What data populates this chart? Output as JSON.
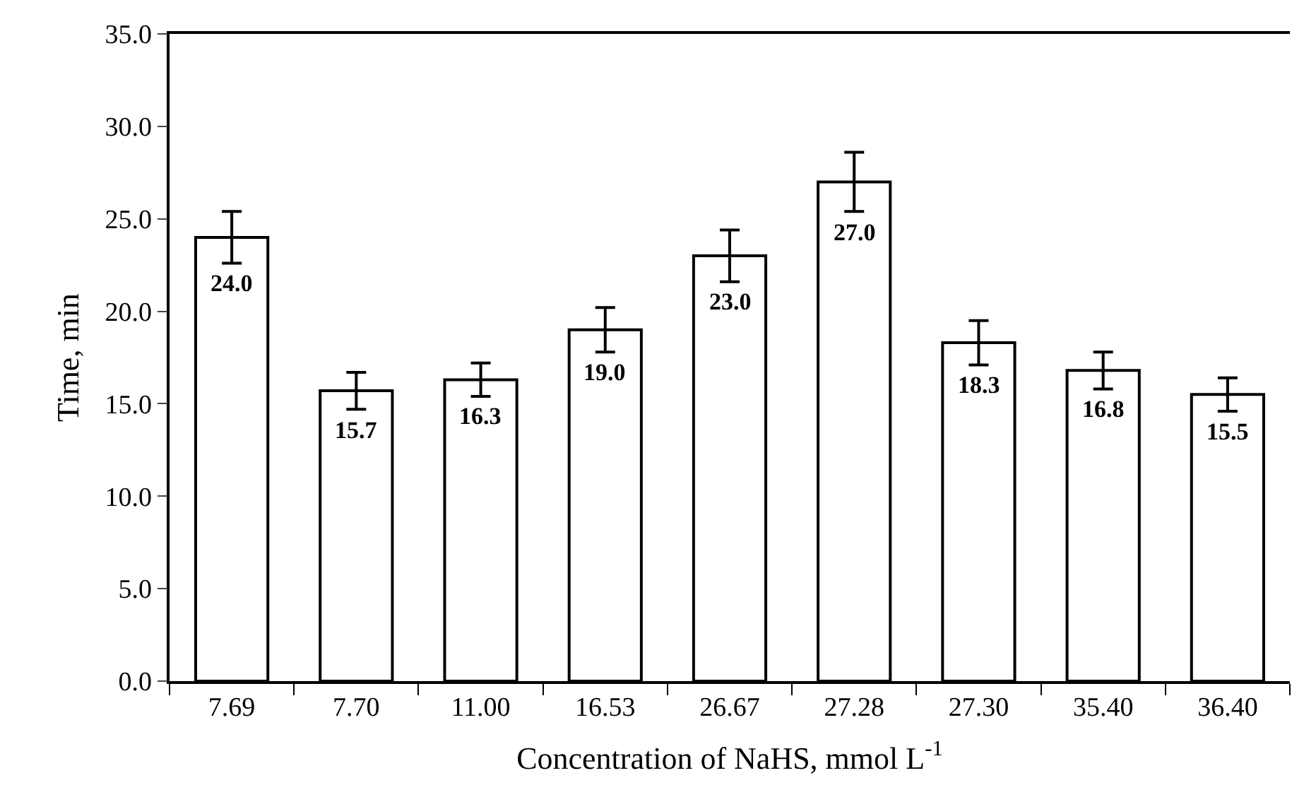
{
  "chart_data": {
    "type": "bar",
    "xlabel": "Concentration of NaHS, mmol L$^{-1}$",
    "ylabel": "Time, min",
    "categories": [
      "7.69",
      "7.70",
      "11.00",
      "16.53",
      "26.67",
      "27.28",
      "27.30",
      "35.40",
      "36.40"
    ],
    "values": [
      24.0,
      15.7,
      16.3,
      19.0,
      23.0,
      27.0,
      18.3,
      16.8,
      15.5
    ],
    "value_labels": [
      "24.0",
      "15.7",
      "16.3",
      "19.0",
      "23.0",
      "27.0",
      "18.3",
      "16.8",
      "15.5"
    ],
    "errors": [
      1.4,
      1.0,
      0.9,
      1.2,
      1.4,
      1.6,
      1.2,
      1.0,
      0.9
    ],
    "color": "#ffffff",
    "ylim": [
      0,
      35
    ],
    "yticks": [
      {
        "value": 0,
        "label": "0.0"
      },
      {
        "value": 5,
        "label": "5.0"
      },
      {
        "value": 10,
        "label": "10.0"
      },
      {
        "value": 15,
        "label": "15.0"
      },
      {
        "value": 20,
        "label": "20.0"
      },
      {
        "value": 25,
        "label": "25.0"
      },
      {
        "value": 30,
        "label": "30.0"
      },
      {
        "value": 35,
        "label": "35.0"
      }
    ]
  }
}
